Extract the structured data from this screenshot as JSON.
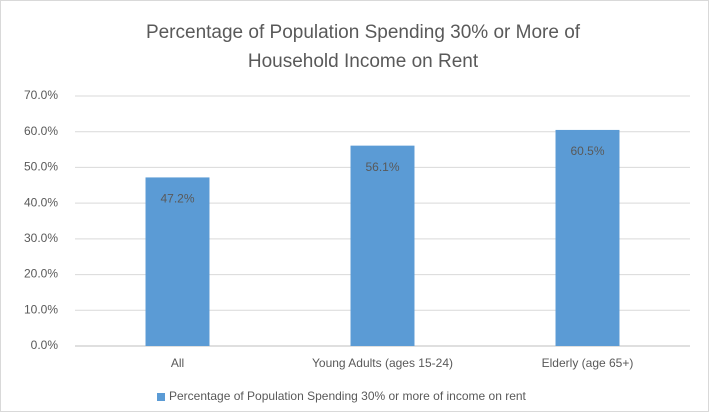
{
  "chart_data": {
    "type": "bar",
    "title": "Percentage of Population Spending 30% or More of Household Income on Rent",
    "categories": [
      "All",
      "Young Adults (ages 15-24)",
      "Elderly (age 65+)"
    ],
    "series": [
      {
        "name": "Percentage of Population Spending 30% or more of income on rent",
        "color": "#5b9bd5",
        "values": [
          47.2,
          56.1,
          60.5
        ],
        "value_labels": [
          "47.2%",
          "56.1%",
          "60.5%"
        ]
      }
    ],
    "ylim": [
      0,
      70
    ],
    "yticks": [
      {
        "value": 0,
        "label": "0.0%"
      },
      {
        "value": 10,
        "label": "10.0%"
      },
      {
        "value": 20,
        "label": "20.0%"
      },
      {
        "value": 30,
        "label": "30.0%"
      },
      {
        "value": 40,
        "label": "40.0%"
      },
      {
        "value": 50,
        "label": "50.0%"
      },
      {
        "value": 60,
        "label": "60.0%"
      },
      {
        "value": 70,
        "label": "70.0%"
      }
    ],
    "grid": true,
    "legend": "bottom"
  }
}
